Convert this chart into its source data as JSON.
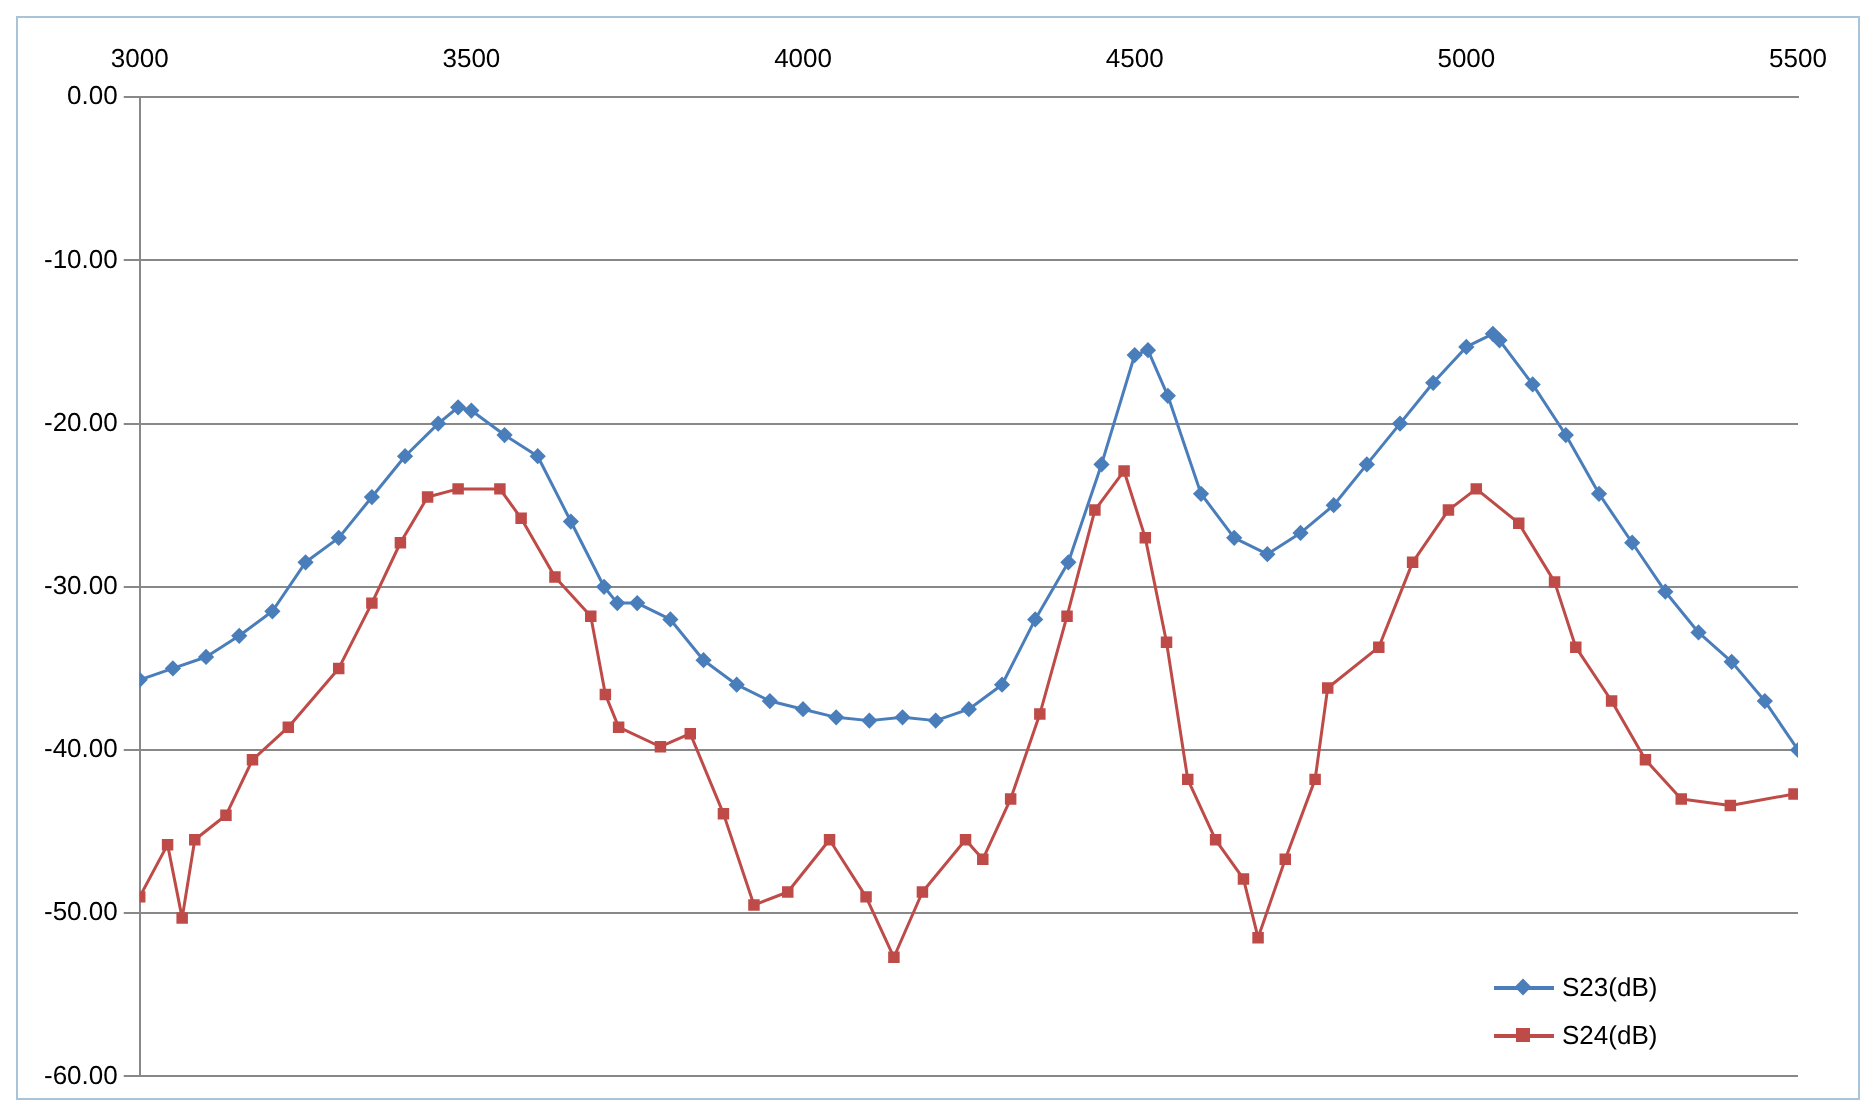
{
  "chart_data": {
    "type": "line",
    "xlim": [
      3000,
      5500
    ],
    "xticks": [
      3000,
      3500,
      4000,
      4500,
      5000,
      5500
    ],
    "ylim": [
      -60,
      0
    ],
    "yticks": [
      {
        "value": -60,
        "label": "-60.00"
      },
      {
        "value": -50,
        "label": "-50.00"
      },
      {
        "value": -40,
        "label": "-40.00"
      },
      {
        "value": -30,
        "label": "-30.00"
      },
      {
        "value": -20,
        "label": "-20.00"
      },
      {
        "value": -10,
        "label": "-10.00"
      },
      {
        "value": 0,
        "label": "0.00"
      }
    ],
    "grid": "y",
    "legend": "bottom right",
    "line_style": "solid",
    "series": [
      {
        "name": "S23(dB)",
        "color": "#4a7ebb",
        "marker": "diamond",
        "x": [
          3000,
          3050,
          3100,
          3150,
          3200,
          3250,
          3300,
          3350,
          3400,
          3450,
          3480,
          3500,
          3550,
          3600,
          3650,
          3700,
          3720,
          3750,
          3800,
          3850,
          3900,
          3950,
          4000,
          4050,
          4100,
          4150,
          4200,
          4250,
          4300,
          4350,
          4400,
          4450,
          4500,
          4520,
          4550,
          4600,
          4650,
          4700,
          4750,
          4800,
          4850,
          4900,
          4950,
          5000,
          5040,
          5050,
          5100,
          5150,
          5200,
          5250,
          5300,
          5350,
          5400,
          5450,
          5500
        ],
        "values": [
          -35.7,
          -35,
          -34.3,
          -33,
          -31.5,
          -28.5,
          -27,
          -24.5,
          -22,
          -20,
          -19,
          -19.2,
          -20.7,
          -22,
          -26,
          -30,
          -31,
          -31,
          -32,
          -34.5,
          -36,
          -37,
          -37.5,
          -38,
          -38.2,
          -38,
          -38.2,
          -37.5,
          -36,
          -32,
          -28.5,
          -22.5,
          -15.8,
          -15.5,
          -18.3,
          -24.3,
          -27,
          -28,
          -26.7,
          -25,
          -22.5,
          -20,
          -17.5,
          -15.3,
          -14.5,
          -14.9,
          -17.6,
          -20.7,
          -24.3,
          -27.3,
          -30.3,
          -32.8,
          -34.6,
          -37,
          -40
        ]
      },
      {
        "name": "S24(dB)",
        "color": "#be4b48",
        "marker": "square",
        "x": [
          3000,
          3042,
          3064,
          3083,
          3130,
          3170,
          3224,
          3300,
          3350,
          3393,
          3434,
          3480,
          3543,
          3575,
          3626,
          3680,
          3702,
          3722,
          3785,
          3830,
          3880,
          3926,
          3977,
          4040,
          4095,
          4137,
          4180,
          4245,
          4271,
          4313,
          4357,
          4398,
          4440,
          4484,
          4516,
          4548,
          4580,
          4622,
          4664,
          4686,
          4727,
          4772,
          4791,
          4868,
          4919,
          4973,
          5015,
          5079,
          5133,
          5165,
          5219,
          5270,
          5324,
          5398,
          5494
        ],
        "values": [
          -49,
          -45.8,
          -50.3,
          -45.5,
          -44,
          -40.6,
          -38.6,
          -35,
          -31,
          -27.3,
          -24.5,
          -24,
          -24,
          -25.8,
          -29.4,
          -31.8,
          -36.6,
          -38.6,
          -39.8,
          -39,
          -43.9,
          -49.5,
          -48.7,
          -45.5,
          -49,
          -52.7,
          -48.7,
          -45.5,
          -46.7,
          -43,
          -37.8,
          -31.8,
          -25.3,
          -22.9,
          -27,
          -33.4,
          -41.8,
          -45.5,
          -47.9,
          -51.5,
          -46.7,
          -41.8,
          -36.2,
          -33.7,
          -28.5,
          -25.3,
          -24,
          -26.1,
          -29.7,
          -33.7,
          -37,
          -40.6,
          -43,
          -43.4,
          -42.7
        ]
      }
    ]
  }
}
